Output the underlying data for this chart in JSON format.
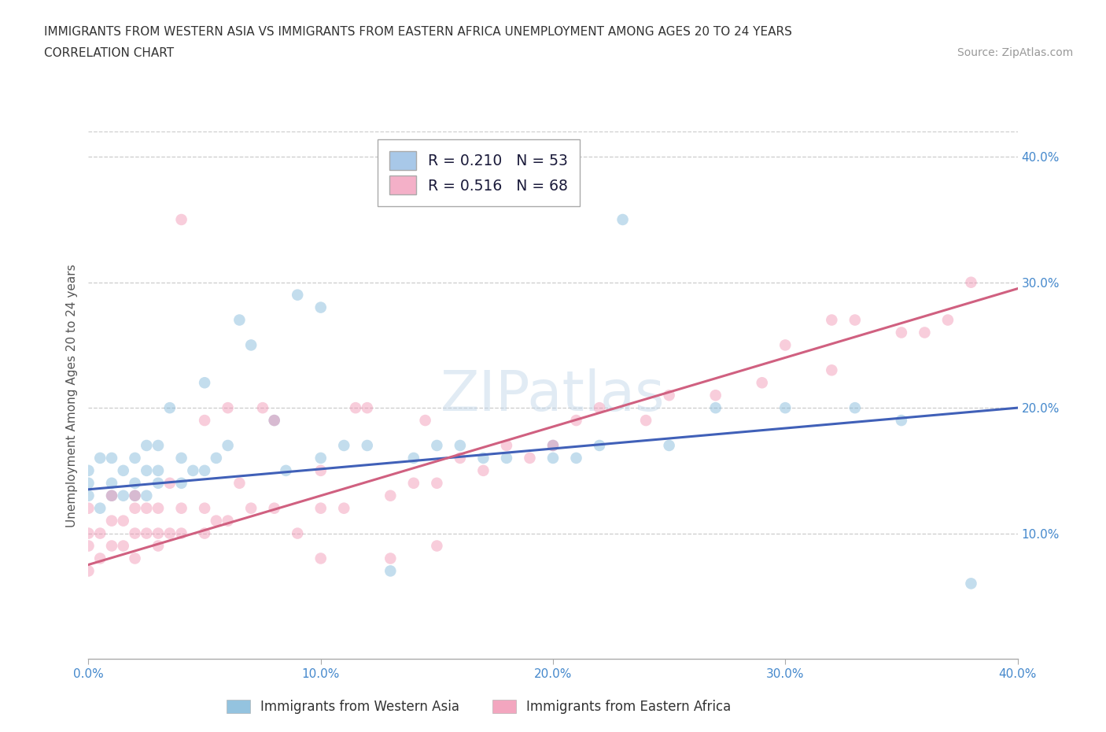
{
  "title_line1": "IMMIGRANTS FROM WESTERN ASIA VS IMMIGRANTS FROM EASTERN AFRICA UNEMPLOYMENT AMONG AGES 20 TO 24 YEARS",
  "title_line2": "CORRELATION CHART",
  "source_text": "Source: ZipAtlas.com",
  "ylabel": "Unemployment Among Ages 20 to 24 years",
  "xlim": [
    0.0,
    0.4
  ],
  "ylim": [
    0.0,
    0.42
  ],
  "xtick_labels": [
    "0.0%",
    "10.0%",
    "20.0%",
    "30.0%",
    "40.0%"
  ],
  "xtick_vals": [
    0.0,
    0.1,
    0.2,
    0.3,
    0.4
  ],
  "ytick_labels": [
    "10.0%",
    "20.0%",
    "30.0%",
    "40.0%"
  ],
  "ytick_vals": [
    0.1,
    0.2,
    0.3,
    0.4
  ],
  "watermark": "ZIPatlas",
  "legend_r_n": [
    {
      "R": "0.210",
      "N": "53",
      "color": "#a8c8e8"
    },
    {
      "R": "0.516",
      "N": "68",
      "color": "#f4b0c8"
    }
  ],
  "series1_label": "Immigrants from Western Asia",
  "series2_label": "Immigrants from Eastern Africa",
  "series1_color": "#7ab4d8",
  "series2_color": "#f090b0",
  "series1_line_color": "#4060b8",
  "series2_line_color": "#d06080",
  "background_color": "#ffffff",
  "grid_color": "#cccccc",
  "series1_x": [
    0.0,
    0.0,
    0.0,
    0.005,
    0.005,
    0.01,
    0.01,
    0.01,
    0.015,
    0.015,
    0.02,
    0.02,
    0.02,
    0.025,
    0.025,
    0.025,
    0.03,
    0.03,
    0.03,
    0.035,
    0.04,
    0.04,
    0.045,
    0.05,
    0.05,
    0.055,
    0.06,
    0.065,
    0.07,
    0.08,
    0.085,
    0.09,
    0.1,
    0.1,
    0.11,
    0.12,
    0.13,
    0.14,
    0.15,
    0.16,
    0.17,
    0.18,
    0.2,
    0.2,
    0.21,
    0.22,
    0.23,
    0.25,
    0.27,
    0.3,
    0.33,
    0.35,
    0.38
  ],
  "series1_y": [
    0.13,
    0.14,
    0.15,
    0.12,
    0.16,
    0.13,
    0.14,
    0.16,
    0.13,
    0.15,
    0.13,
    0.14,
    0.16,
    0.13,
    0.15,
    0.17,
    0.14,
    0.15,
    0.17,
    0.2,
    0.14,
    0.16,
    0.15,
    0.15,
    0.22,
    0.16,
    0.17,
    0.27,
    0.25,
    0.19,
    0.15,
    0.29,
    0.16,
    0.28,
    0.17,
    0.17,
    0.07,
    0.16,
    0.17,
    0.17,
    0.16,
    0.16,
    0.16,
    0.17,
    0.16,
    0.17,
    0.35,
    0.17,
    0.2,
    0.2,
    0.2,
    0.19,
    0.06
  ],
  "series2_x": [
    0.0,
    0.0,
    0.0,
    0.0,
    0.005,
    0.005,
    0.01,
    0.01,
    0.01,
    0.015,
    0.015,
    0.02,
    0.02,
    0.02,
    0.02,
    0.025,
    0.025,
    0.03,
    0.03,
    0.03,
    0.035,
    0.035,
    0.04,
    0.04,
    0.04,
    0.05,
    0.05,
    0.05,
    0.055,
    0.06,
    0.06,
    0.065,
    0.07,
    0.075,
    0.08,
    0.08,
    0.09,
    0.1,
    0.1,
    0.11,
    0.115,
    0.12,
    0.13,
    0.14,
    0.145,
    0.15,
    0.16,
    0.17,
    0.18,
    0.19,
    0.2,
    0.21,
    0.22,
    0.24,
    0.25,
    0.27,
    0.29,
    0.3,
    0.32,
    0.33,
    0.35,
    0.36,
    0.37,
    0.38,
    0.1,
    0.13,
    0.15,
    0.32
  ],
  "series2_y": [
    0.07,
    0.09,
    0.1,
    0.12,
    0.08,
    0.1,
    0.09,
    0.11,
    0.13,
    0.09,
    0.11,
    0.08,
    0.1,
    0.12,
    0.13,
    0.1,
    0.12,
    0.09,
    0.1,
    0.12,
    0.1,
    0.14,
    0.1,
    0.12,
    0.35,
    0.1,
    0.12,
    0.19,
    0.11,
    0.11,
    0.2,
    0.14,
    0.12,
    0.2,
    0.12,
    0.19,
    0.1,
    0.12,
    0.15,
    0.12,
    0.2,
    0.2,
    0.13,
    0.14,
    0.19,
    0.14,
    0.16,
    0.15,
    0.17,
    0.16,
    0.17,
    0.19,
    0.2,
    0.19,
    0.21,
    0.21,
    0.22,
    0.25,
    0.23,
    0.27,
    0.26,
    0.26,
    0.27,
    0.3,
    0.08,
    0.08,
    0.09,
    0.27
  ]
}
